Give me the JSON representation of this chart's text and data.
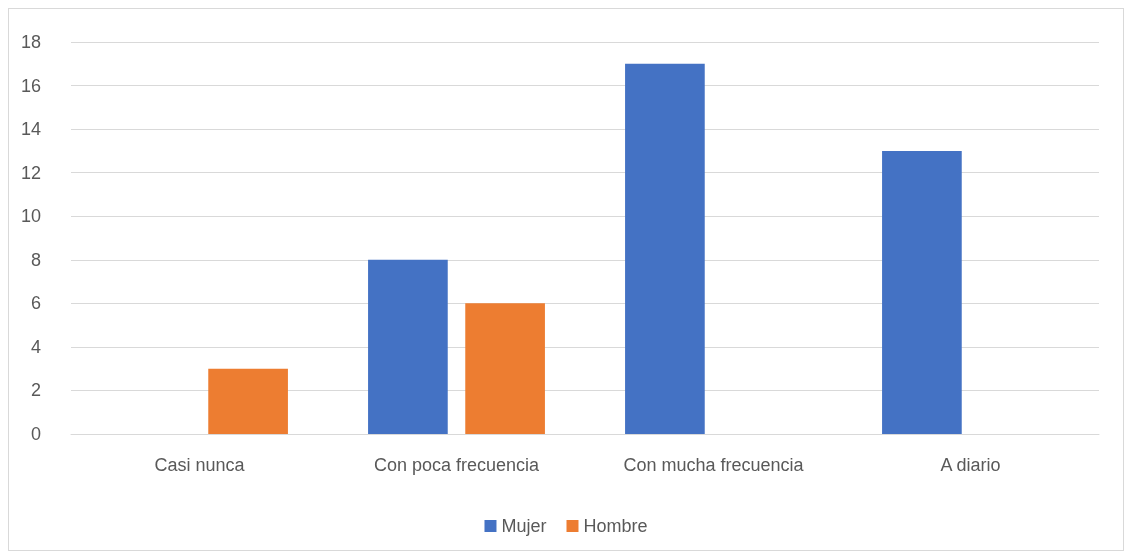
{
  "chart_data": {
    "type": "bar",
    "categories": [
      "Casi nunca",
      "Con poca frecuencia",
      "Con mucha frecuencia",
      "A diario"
    ],
    "series": [
      {
        "name": "Mujer",
        "color": "#4472c4",
        "values": [
          0,
          8,
          17,
          13
        ]
      },
      {
        "name": "Hombre",
        "color": "#ed7d31",
        "values": [
          3,
          6,
          0,
          0
        ]
      }
    ],
    "ylim": [
      0,
      18
    ],
    "yticks": [
      0,
      2,
      4,
      6,
      8,
      10,
      12,
      14,
      16,
      18
    ],
    "grid": "y",
    "legend": "bottom"
  }
}
